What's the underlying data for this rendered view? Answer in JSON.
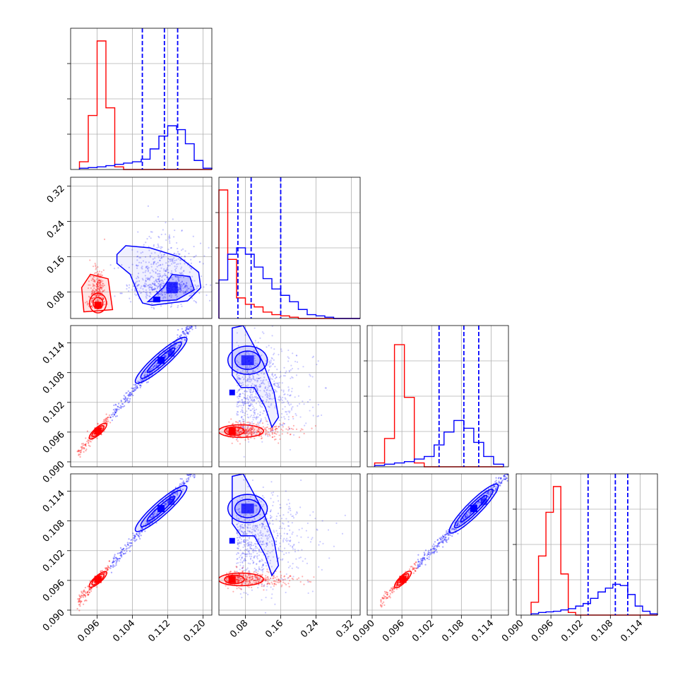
{
  "chart_data": {
    "type": "corner",
    "colors": {
      "red": "#ff0000",
      "blue": "#0000ff",
      "grid": "#b0b0b0"
    },
    "params": [
      {
        "range": [
          0.09,
          0.122
        ],
        "ticks": [
          "0.096",
          "0.104",
          "0.112",
          "0.120"
        ],
        "tick_values": [
          0.096,
          0.104,
          0.112,
          0.12
        ]
      },
      {
        "range": [
          0.02,
          0.34
        ],
        "ticks": [
          "0.08",
          "0.16",
          "0.24",
          "0.32"
        ],
        "tick_values": [
          0.08,
          0.16,
          0.24,
          0.32
        ]
      },
      {
        "range": [
          0.089,
          0.1175
        ],
        "ticks": [
          "0.090",
          "0.096",
          "0.102",
          "0.108",
          "0.114"
        ],
        "tick_values": [
          0.09,
          0.096,
          0.102,
          0.108,
          0.114
        ]
      },
      {
        "range": [
          0.089,
          0.1175
        ],
        "ticks": [
          "0.090",
          "0.096",
          "0.102",
          "0.108",
          "0.114"
        ],
        "tick_values": [
          0.09,
          0.096,
          0.102,
          0.108,
          0.114
        ]
      }
    ],
    "diagonal": [
      {
        "bins": [
          0.092,
          0.094,
          0.096,
          0.098,
          0.1,
          0.102,
          0.104,
          0.106,
          0.108,
          0.11,
          0.112,
          0.114,
          0.116,
          0.118,
          0.12,
          0.122
        ],
        "red": [
          0.06,
          0.42,
          1.0,
          0.48,
          0.02,
          0.0,
          0.0,
          0.0,
          0.0,
          0.0,
          0.0,
          0.0,
          0.0,
          0.0,
          0.0
        ],
        "blue": [
          0.01,
          0.015,
          0.02,
          0.03,
          0.04,
          0.05,
          0.06,
          0.08,
          0.16,
          0.26,
          0.34,
          0.31,
          0.2,
          0.07,
          0.01
        ],
        "quantiles": [
          0.10625,
          0.11125,
          0.11425
        ]
      },
      {
        "bins": [
          0.02,
          0.04,
          0.06,
          0.08,
          0.1,
          0.12,
          0.14,
          0.16,
          0.18,
          0.2,
          0.22,
          0.24,
          0.26,
          0.28,
          0.3,
          0.32,
          0.34
        ],
        "red": [
          1.0,
          0.46,
          0.16,
          0.11,
          0.09,
          0.05,
          0.03,
          0.02,
          0.01,
          0.0,
          0.0,
          0.0,
          0.0,
          0.0,
          0.0,
          0.0
        ],
        "blue": [
          0.3,
          0.5,
          0.55,
          0.5,
          0.4,
          0.31,
          0.23,
          0.18,
          0.13,
          0.07,
          0.03,
          0.02,
          0.01,
          0.0,
          0.0,
          0.0
        ],
        "quantiles": [
          0.063,
          0.093,
          0.16
        ]
      },
      {
        "bins": [
          0.0905,
          0.0925,
          0.0945,
          0.0965,
          0.0985,
          0.1005,
          0.1025,
          0.1045,
          0.1065,
          0.1085,
          0.1105,
          0.1125,
          0.1145,
          0.1165
        ],
        "red": [
          0.03,
          0.22,
          0.95,
          0.54,
          0.03,
          0.0,
          0.0,
          0.0,
          0.0,
          0.0,
          0.0,
          0.0,
          0.0
        ],
        "blue": [
          0.01,
          0.02,
          0.03,
          0.04,
          0.06,
          0.08,
          0.17,
          0.27,
          0.36,
          0.3,
          0.19,
          0.08,
          0.02
        ],
        "quantiles": [
          0.1035,
          0.1085,
          0.1115
        ]
      },
      {
        "bins": [
          0.092,
          0.0935,
          0.095,
          0.0965,
          0.098,
          0.0995,
          0.101,
          0.1025,
          0.104,
          0.1055,
          0.107,
          0.1085,
          0.11,
          0.1115,
          0.113,
          0.1145,
          0.116,
          0.1175
        ],
        "red": [
          0.1,
          0.46,
          0.8,
          1.0,
          0.32,
          0.02,
          0.0,
          0.0,
          0.0,
          0.0,
          0.0,
          0.0,
          0.0,
          0.0,
          0.0,
          0.0,
          0.0
        ],
        "blue": [
          0.01,
          0.02,
          0.025,
          0.03,
          0.04,
          0.05,
          0.07,
          0.09,
          0.13,
          0.18,
          0.21,
          0.24,
          0.23,
          0.16,
          0.07,
          0.03,
          0.01
        ],
        "quantiles": [
          0.1035,
          0.109,
          0.1115
        ]
      }
    ]
  }
}
